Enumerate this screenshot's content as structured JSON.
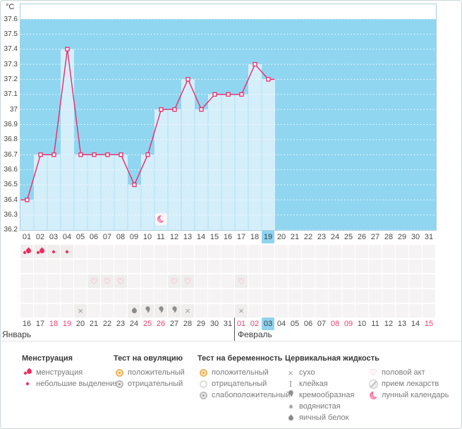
{
  "chart_data": {
    "type": "line",
    "title": "",
    "ylabel": "°C",
    "ylim": [
      36.2,
      37.7
    ],
    "y_ticks": [
      "37.6",
      "37.5",
      "37.4",
      "37.3",
      "37.2",
      "37.1",
      "37",
      "36.9",
      "36.8",
      "36.7",
      "36.6",
      "36.5",
      "36.4",
      "36.3",
      "36.2"
    ],
    "x": [
      "01",
      "02",
      "03",
      "04",
      "05",
      "06",
      "07",
      "08",
      "09",
      "10",
      "11",
      "12",
      "13",
      "14",
      "15",
      "16",
      "17",
      "18",
      "19",
      "20",
      "21",
      "22",
      "23",
      "24",
      "25",
      "26",
      "27",
      "28",
      "29",
      "30",
      "31"
    ],
    "series": [
      {
        "name": "temperature",
        "values": [
          36.4,
          36.7,
          36.7,
          37.4,
          36.7,
          36.7,
          36.7,
          36.7,
          36.5,
          36.7,
          37.0,
          37.0,
          37.2,
          37.0,
          37.1,
          37.1,
          37.1,
          37.3,
          37.2,
          null,
          null,
          null,
          null,
          null,
          null,
          null,
          null,
          null,
          null,
          null,
          null
        ]
      }
    ],
    "grid": "horizontal-dotted-white",
    "legend_position": "none",
    "selected_day": "19",
    "moon_marker_day": "11"
  },
  "colors": {
    "plot_bg": "#90d6f1",
    "filled_column": "#d4eefa",
    "column_separator": "#abe1f7",
    "line": "#eb2a68",
    "selected_day_bg": "#8fd3f0",
    "weekend_text": "#ee3f6e",
    "menses_icon": "#ed2b5f",
    "heart_icon": "#f07fa5",
    "gray_icon": "#8e8e8e",
    "amber_icon": "#f2b45c"
  },
  "symbol_rows": [
    {
      "id": "menstruation",
      "cells": {
        "01": "menses-heavy",
        "02": "menses-heavy",
        "03": "menses-light",
        "04": "menses-light"
      }
    },
    {
      "id": "ovulation-test",
      "cells": {}
    },
    {
      "id": "intercourse",
      "cells": {
        "06": "heart",
        "07": "heart",
        "08": "heart",
        "12": "heart",
        "13": "heart",
        "17": "heart"
      }
    },
    {
      "id": "pregnancy-test",
      "cells": {}
    },
    {
      "id": "cervical-fluid",
      "cells": {
        "05": "dry",
        "09": "eggwhite",
        "10": "creamy",
        "11": "creamy",
        "12": "creamy",
        "13": "dry",
        "17": "dry"
      }
    }
  ],
  "calendar": {
    "months": [
      {
        "label": "Январь",
        "dates": [
          "16",
          "17",
          "18",
          "19",
          "20",
          "21",
          "22",
          "23",
          "24",
          "25",
          "26",
          "27",
          "28",
          "29",
          "30",
          "31"
        ],
        "weekend_dates": [
          "18",
          "19",
          "25",
          "26"
        ],
        "today": null
      },
      {
        "label": "Февраль",
        "dates": [
          "01",
          "02",
          "03",
          "04",
          "05",
          "06",
          "07",
          "08",
          "09",
          "10",
          "11",
          "12",
          "13",
          "14",
          "15"
        ],
        "weekend_dates": [
          "01",
          "02",
          "08",
          "09",
          "15"
        ],
        "today": "03"
      }
    ]
  },
  "legend": {
    "columns": [
      {
        "title": "Менструация",
        "items": [
          {
            "icon": "menses-heavy",
            "label": "менструация"
          },
          {
            "icon": "menses-light",
            "label": "небольшие выделения"
          }
        ]
      },
      {
        "title": "Тест на овуляцию",
        "items": [
          {
            "icon": "ovu-positive",
            "label": "положительный"
          },
          {
            "icon": "ovu-negative",
            "label": "отрицательный"
          }
        ]
      },
      {
        "title": "Тест на беременность",
        "items": [
          {
            "icon": "preg-positive",
            "label": "положительный"
          },
          {
            "icon": "preg-negative",
            "label": "отрицательный"
          },
          {
            "icon": "preg-weak",
            "label": "слабоположительный"
          }
        ]
      },
      {
        "title": "Цервикальная жидкость",
        "items": [
          {
            "icon": "dry",
            "label": "сухо"
          },
          {
            "icon": "sticky",
            "label": "клейкая"
          },
          {
            "icon": "creamy",
            "label": "кремообразная"
          },
          {
            "icon": "watery",
            "label": "водянистая"
          },
          {
            "icon": "eggwhite",
            "label": "яичный белок"
          }
        ]
      },
      {
        "title": "",
        "items": [
          {
            "icon": "heart",
            "label": "половой акт"
          },
          {
            "icon": "pill",
            "label": "прием лекарств"
          },
          {
            "icon": "moon",
            "label": "лунный календарь"
          }
        ]
      }
    ]
  }
}
